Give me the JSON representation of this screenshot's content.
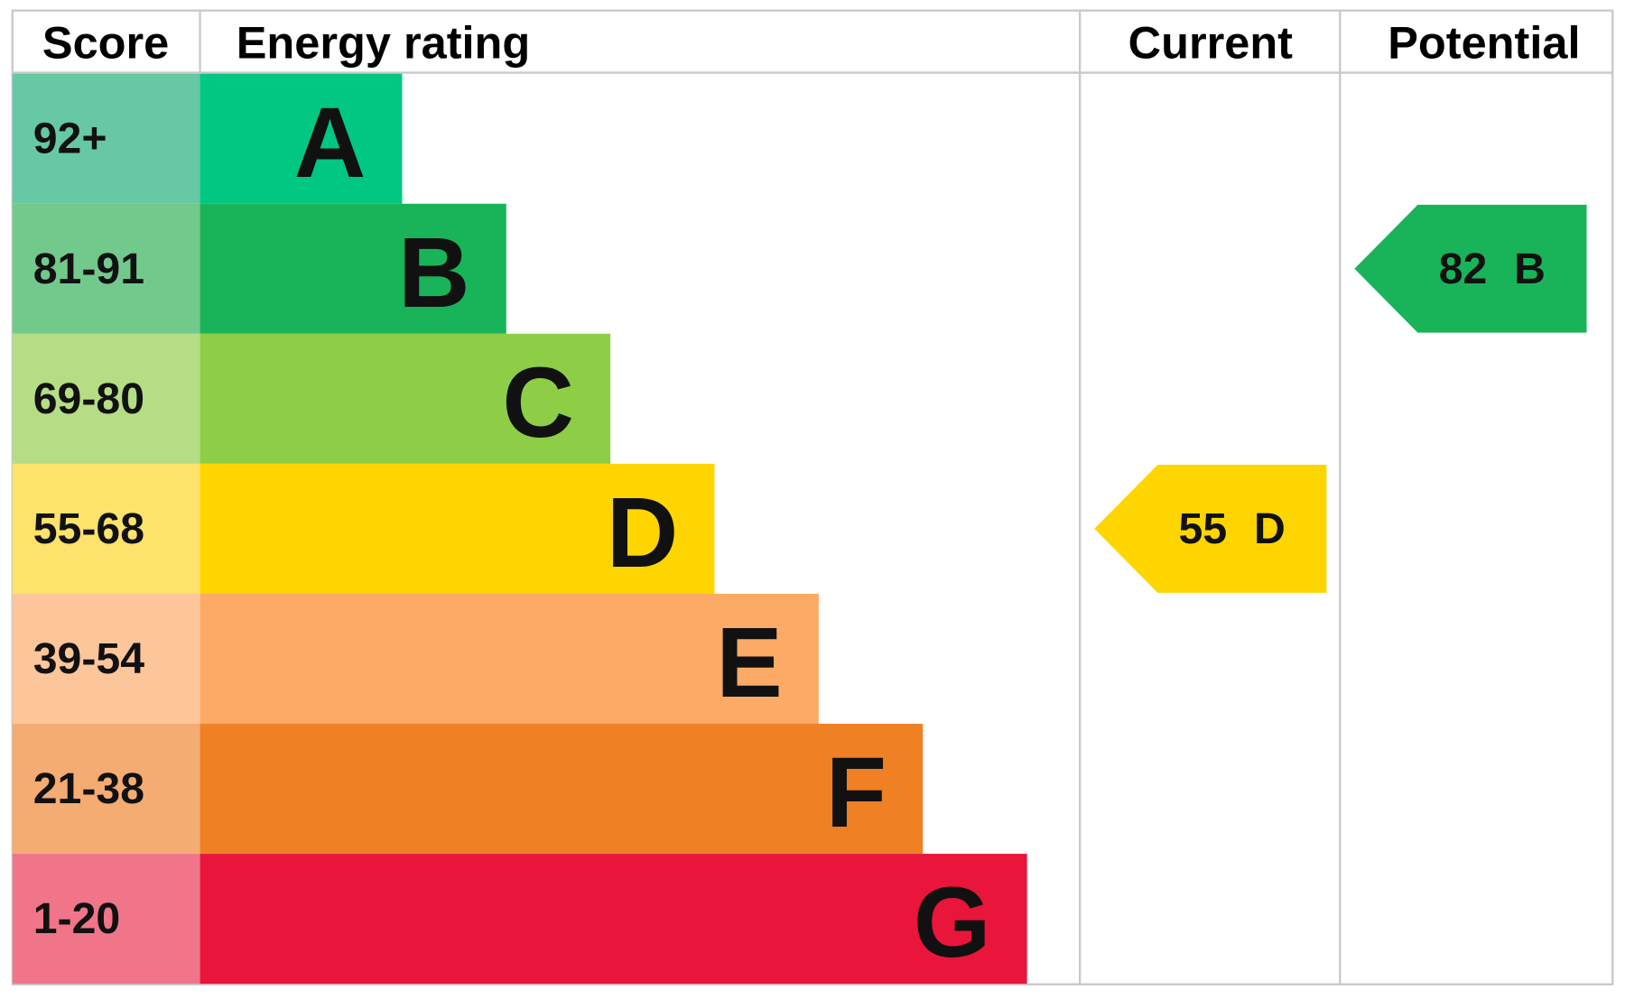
{
  "header": {
    "score": "Score",
    "energy_rating": "Energy rating",
    "current": "Current",
    "potential": "Potential"
  },
  "bands": [
    {
      "score": "92+",
      "letter": "A",
      "color": "#00c781",
      "score_color": "#66c9a3"
    },
    {
      "score": "81-91",
      "letter": "B",
      "color": "#19b459",
      "score_color": "#72c98c"
    },
    {
      "score": "69-80",
      "letter": "C",
      "color": "#8dce46",
      "score_color": "#b5dd85"
    },
    {
      "score": "55-68",
      "letter": "D",
      "color": "#ffd500",
      "score_color": "#fde26b"
    },
    {
      "score": "39-54",
      "letter": "E",
      "color": "#fcaa65",
      "score_color": "#fdc59a"
    },
    {
      "score": "21-38",
      "letter": "F",
      "color": "#ef8023",
      "score_color": "#f4ac73"
    },
    {
      "score": "1-20",
      "letter": "G",
      "color": "#e9153b",
      "score_color": "#f07589"
    }
  ],
  "current": {
    "value": 55,
    "letter": "D"
  },
  "potential": {
    "value": 82,
    "letter": "B"
  }
}
